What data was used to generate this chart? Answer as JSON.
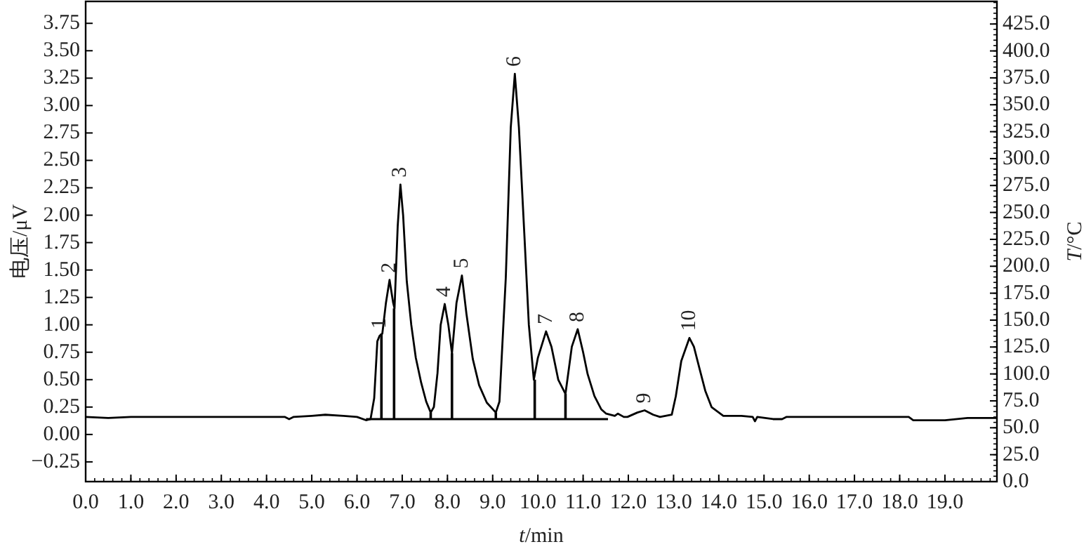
{
  "chart_data": {
    "type": "line",
    "xlabel": "t/min",
    "ylabel": "电压/μV",
    "y2label": "T/°C",
    "xlim": [
      0,
      20.15
    ],
    "ylim": [
      -0.43,
      3.95
    ],
    "y2lim": [
      0,
      446
    ],
    "xticks": [
      {
        "value": 0,
        "label": "0.0"
      },
      {
        "value": 1,
        "label": "1.0"
      },
      {
        "value": 2,
        "label": "2.0"
      },
      {
        "value": 3,
        "label": "3.0"
      },
      {
        "value": 4,
        "label": "4.0"
      },
      {
        "value": 5,
        "label": "5.0"
      },
      {
        "value": 6,
        "label": "6.0"
      },
      {
        "value": 7,
        "label": "7.0"
      },
      {
        "value": 8,
        "label": "8.0"
      },
      {
        "value": 9,
        "label": "9.0"
      },
      {
        "value": 10,
        "label": "10.0"
      },
      {
        "value": 11,
        "label": "11.0"
      },
      {
        "value": 12,
        "label": "12.0"
      },
      {
        "value": 13,
        "label": "13.0"
      },
      {
        "value": 14,
        "label": "14.0"
      },
      {
        "value": 15,
        "label": "15.0"
      },
      {
        "value": 16,
        "label": "16.0"
      },
      {
        "value": 17,
        "label": "17.0"
      },
      {
        "value": 18,
        "label": "18.0"
      },
      {
        "value": 19,
        "label": "19.0"
      }
    ],
    "yticks": [
      {
        "value": -0.25,
        "label": "−0.25"
      },
      {
        "value": 0,
        "label": "0.00"
      },
      0.25,
      {
        "value": 0.5,
        "label": "0.50"
      },
      0.75,
      {
        "value": 1,
        "label": "1.00"
      },
      1.25,
      {
        "value": 1.5,
        "label": "1.50"
      },
      1.75,
      {
        "value": 2,
        "label": "2.00"
      },
      2.25,
      {
        "value": 2.5,
        "label": "2.50"
      },
      2.75,
      {
        "value": 3,
        "label": "3.00"
      },
      3.25,
      {
        "value": 3.5,
        "label": "3.50"
      },
      3.75
    ],
    "y2ticks": [
      {
        "value": 0,
        "label": "0.0"
      },
      {
        "value": 25,
        "label": "25.0"
      },
      {
        "value": 50,
        "label": "50.0"
      },
      {
        "value": 75,
        "label": "75.0"
      },
      {
        "value": 100,
        "label": "100.0"
      },
      {
        "value": 125,
        "label": "125.0"
      },
      {
        "value": 150,
        "label": "150.0"
      },
      {
        "value": 175,
        "label": "175.0"
      },
      {
        "value": 200,
        "label": "200.0"
      },
      {
        "value": 225,
        "label": "225.0"
      },
      {
        "value": 250,
        "label": "250.0"
      },
      {
        "value": 275,
        "label": "275.0"
      },
      {
        "value": 300,
        "label": "300.0"
      },
      {
        "value": 325,
        "label": "325.0"
      },
      {
        "value": 350,
        "label": "350.0"
      },
      {
        "value": 375,
        "label": "375.0"
      },
      {
        "value": 400,
        "label": "400.0"
      },
      {
        "value": 425,
        "label": "425.0"
      }
    ],
    "grid": false,
    "marker": "none",
    "line_style": "solid",
    "series": [
      {
        "color": "#000000",
        "x": [
          0,
          0.5,
          1,
          1.5,
          2,
          2.5,
          3,
          3.5,
          4,
          4.4,
          4.5,
          4.6,
          5,
          5.3,
          5.7,
          6,
          6.2,
          6.3,
          6.38,
          6.45,
          6.5,
          6.56,
          6.64,
          6.72,
          6.8,
          6.83,
          6.9,
          6.96,
          7.02,
          7.1,
          7.2,
          7.3,
          7.42,
          7.53,
          7.63,
          7.7,
          7.78,
          7.85,
          7.94,
          8.02,
          8.1,
          8.2,
          8.32,
          8.42,
          8.56,
          8.7,
          8.87,
          9.07,
          9.15,
          9.29,
          9.4,
          9.49,
          9.58,
          9.7,
          9.8,
          9.91,
          10,
          10.18,
          10.3,
          10.45,
          10.61,
          10.75,
          10.88,
          11,
          11.1,
          11.25,
          11.4,
          11.51,
          11.7,
          11.77,
          11.9,
          11.98,
          12.2,
          12.36,
          12.55,
          12.7,
          12.96,
          13.05,
          13.17,
          13.35,
          13.45,
          13.58,
          13.7,
          13.84,
          14.1,
          14.5,
          14.75,
          14.8,
          14.85,
          15.2,
          15.4,
          15.5,
          16,
          17,
          18,
          18.2,
          18.3,
          19,
          19.5,
          20.15
        ],
        "values": [
          0.16,
          0.15,
          0.16,
          0.16,
          0.16,
          0.16,
          0.16,
          0.16,
          0.16,
          0.16,
          0.14,
          0.16,
          0.17,
          0.18,
          0.17,
          0.16,
          0.13,
          0.14,
          0.33,
          0.85,
          0.9,
          0.92,
          1.2,
          1.41,
          1.2,
          1.15,
          1.9,
          2.28,
          2.0,
          1.4,
          1.0,
          0.7,
          0.47,
          0.3,
          0.2,
          0.25,
          0.56,
          1.0,
          1.19,
          1.0,
          0.74,
          1.2,
          1.45,
          1.1,
          0.69,
          0.45,
          0.29,
          0.2,
          0.3,
          1.43,
          2.8,
          3.29,
          2.8,
          1.83,
          1.0,
          0.5,
          0.7,
          0.94,
          0.8,
          0.5,
          0.37,
          0.8,
          0.96,
          0.75,
          0.55,
          0.35,
          0.23,
          0.19,
          0.17,
          0.19,
          0.16,
          0.16,
          0.2,
          0.22,
          0.18,
          0.16,
          0.18,
          0.35,
          0.67,
          0.88,
          0.8,
          0.59,
          0.4,
          0.25,
          0.17,
          0.17,
          0.16,
          0.12,
          0.16,
          0.14,
          0.14,
          0.16,
          0.16,
          0.16,
          0.16,
          0.16,
          0.13,
          0.13,
          0.15,
          0.15
        ]
      },
      {
        "type": "line",
        "color": "#000000",
        "x": [
          6.2,
          11.55
        ],
        "values": [
          0.14,
          0.14
        ]
      },
      {
        "type": "bar",
        "color": "#000000",
        "x": [
          6.54,
          6.82,
          7.63,
          8.1,
          9.07,
          9.93,
          10.61
        ],
        "base": [
          0.14,
          0.14,
          0.14,
          0.14,
          0.14,
          0.14,
          0.14
        ],
        "values": [
          0.78,
          1.01,
          0.06,
          0.6,
          0.06,
          0.36,
          0.23
        ]
      }
    ],
    "annotations": [
      {
        "text": "1",
        "x": 6.5,
        "y": 0.9
      },
      {
        "text": "2",
        "x": 6.72,
        "y": 1.41
      },
      {
        "text": "3",
        "x": 6.96,
        "y": 2.28
      },
      {
        "text": "4",
        "x": 7.94,
        "y": 1.19
      },
      {
        "text": "5",
        "x": 8.32,
        "y": 1.45
      },
      {
        "text": "6",
        "x": 9.49,
        "y": 3.29
      },
      {
        "text": "7",
        "x": 10.18,
        "y": 0.94
      },
      {
        "text": "8",
        "x": 10.88,
        "y": 0.96
      },
      {
        "text": "9",
        "x": 12.36,
        "y": 0.22
      },
      {
        "text": "10",
        "x": 13.35,
        "y": 0.88
      }
    ]
  }
}
